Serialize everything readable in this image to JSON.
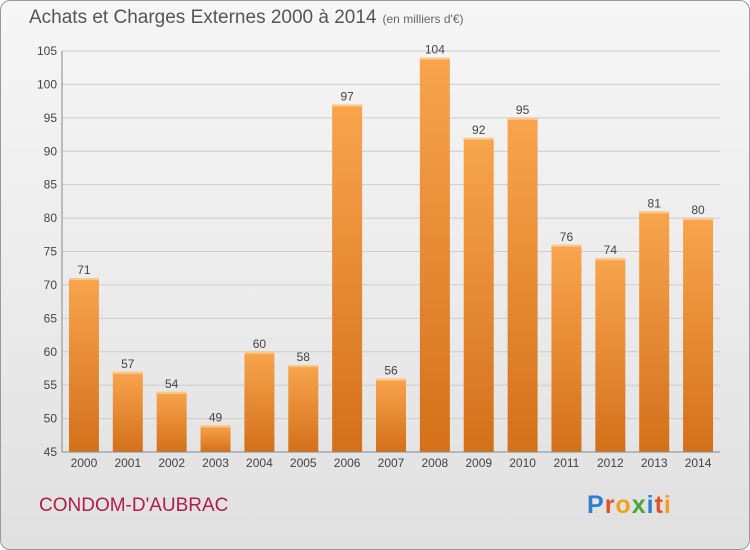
{
  "header": {
    "title": "Achats et Charges Externes 2000 à 2014",
    "subtitle": "(en milliers d'€)"
  },
  "footer": {
    "commune": "CONDOM-D'AUBRAC",
    "logo_letters": [
      "P",
      "r",
      "o",
      "x",
      "i",
      "t",
      "i"
    ]
  },
  "chart_data": {
    "type": "bar",
    "title": "Achats et Charges Externes 2000 à 2014",
    "subtitle": "(en milliers d'€)",
    "categories": [
      "2000",
      "2001",
      "2002",
      "2003",
      "2004",
      "2005",
      "2006",
      "2007",
      "2008",
      "2009",
      "2010",
      "2011",
      "2012",
      "2013",
      "2014"
    ],
    "values": [
      71,
      57,
      54,
      49,
      60,
      58,
      97,
      56,
      104,
      92,
      95,
      76,
      74,
      81,
      80
    ],
    "xlabel": "",
    "ylabel": "",
    "ylim": [
      45,
      105
    ],
    "yticks": [
      45,
      50,
      55,
      60,
      65,
      70,
      75,
      80,
      85,
      90,
      95,
      100,
      105
    ],
    "grid": true,
    "colors": {
      "bar_light": "#f8a54e",
      "bar_dark": "#d4701a",
      "grid": "#cccccc",
      "axis_text": "#444444"
    }
  }
}
